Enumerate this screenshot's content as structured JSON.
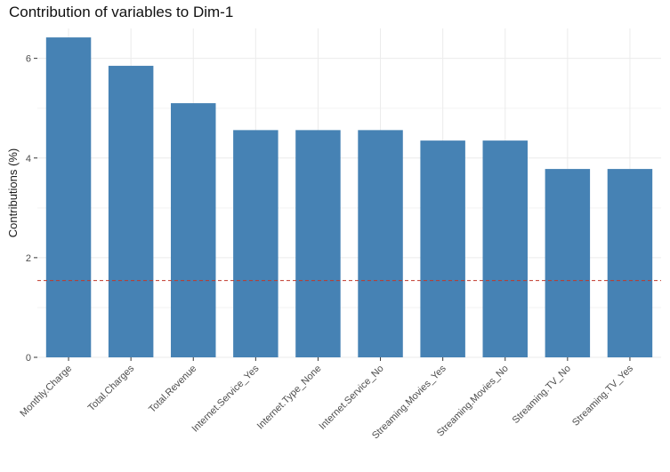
{
  "chart_data": {
    "type": "bar",
    "title": "Contribution of variables to Dim-1",
    "xlabel": "",
    "ylabel": "Contributions (%)",
    "categories": [
      "Monthly.Charge",
      "Total.Charges",
      "Total.Revenue",
      "Internet.Service_Yes",
      "Internet.Type_None",
      "Internet.Service_No",
      "Streaming.Movies_Yes",
      "Streaming.Movies_No",
      "Streaming.TV_No",
      "Streaming.TV_Yes"
    ],
    "values": [
      6.42,
      5.85,
      5.1,
      4.56,
      4.56,
      4.56,
      4.35,
      4.35,
      3.78,
      3.78
    ],
    "ylim": [
      0,
      6.6
    ],
    "yticks": [
      0,
      2,
      4,
      6
    ],
    "reference_line": 1.54,
    "bar_color": "#4682B4",
    "reference_color": "#C0392B",
    "grid": true
  }
}
